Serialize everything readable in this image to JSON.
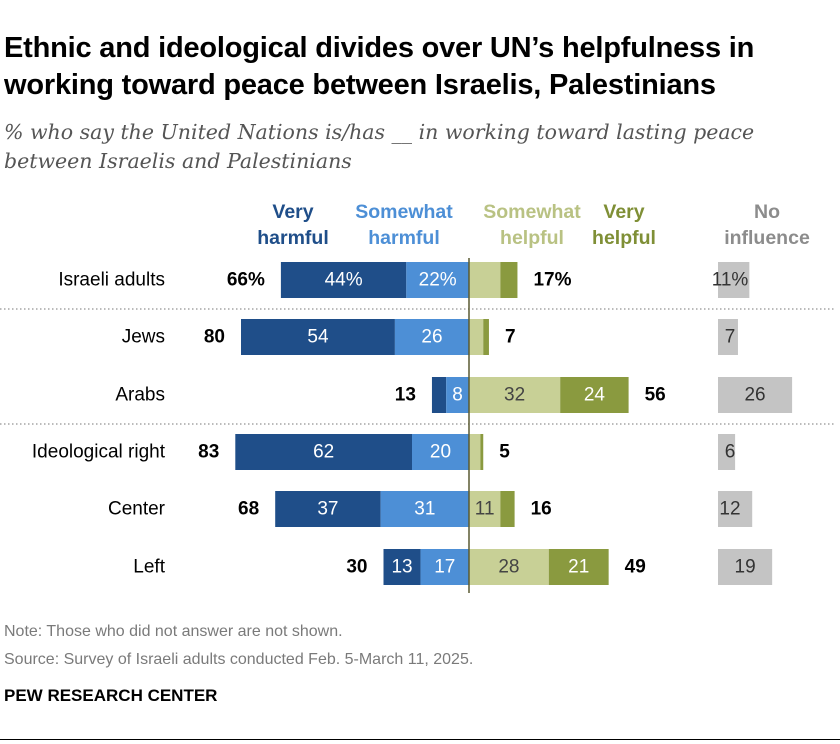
{
  "title": "Ethnic and ideological divides over UN’s helpfulness in working toward peace between Israelis, Palestinians",
  "subtitle": "% who say the United Nations is/has __ in working toward lasting peace between Israelis and Palestinians",
  "note": "Note: Those who did not answer are not shown.",
  "source": "Source: Survey of Israeli adults conducted Feb. 5-March 11, 2025.",
  "brand": "PEW RESEARCH CENTER",
  "colors": {
    "very_harmful": "#1f4e89",
    "somewhat_harmful": "#4d8fd6",
    "somewhat_helpful": "#c8d096",
    "very_helpful": "#8a9a3f",
    "no_influence": "#c4c4c4"
  },
  "chart_data": {
    "type": "bar",
    "stacked": "diverging",
    "headers": {
      "very_harmful": [
        "Very",
        "harmful"
      ],
      "somewhat_harmful": [
        "Somewhat",
        "harmful"
      ],
      "somewhat_helpful": [
        "Somewhat",
        "helpful"
      ],
      "very_helpful": [
        "Very",
        "helpful"
      ],
      "no_influence": [
        "No",
        "influence"
      ]
    },
    "rows": [
      {
        "label": "Israeli adults",
        "very_harmful": 44,
        "somewhat_harmful": 22,
        "somewhat_helpful": 11,
        "very_helpful": 6,
        "no_influence": 11,
        "harmful_total": 66,
        "helpful_total": 17,
        "labels": {
          "very_harmful": "44%",
          "somewhat_harmful": "22%",
          "somewhat_helpful": "",
          "very_helpful": "",
          "no_influence": "11%",
          "harmful_total": "66%",
          "helpful_total": "17%"
        }
      },
      {
        "label": "Jews",
        "very_harmful": 54,
        "somewhat_harmful": 26,
        "somewhat_helpful": 5,
        "very_helpful": 2,
        "no_influence": 7,
        "harmful_total": 80,
        "helpful_total": 7,
        "labels": {
          "very_harmful": "54",
          "somewhat_harmful": "26",
          "somewhat_helpful": "",
          "very_helpful": "",
          "no_influence": "7",
          "harmful_total": "80",
          "helpful_total": "7"
        }
      },
      {
        "label": "Arabs",
        "very_harmful": 5,
        "somewhat_harmful": 8,
        "somewhat_helpful": 32,
        "very_helpful": 24,
        "no_influence": 26,
        "harmful_total": 13,
        "helpful_total": 56,
        "labels": {
          "very_harmful": "",
          "somewhat_harmful": "8",
          "somewhat_helpful": "32",
          "very_helpful": "24",
          "no_influence": "26",
          "harmful_total": "13",
          "helpful_total": "56"
        }
      },
      {
        "label": "Ideological right",
        "very_harmful": 62,
        "somewhat_harmful": 20,
        "somewhat_helpful": 4,
        "very_helpful": 1,
        "no_influence": 6,
        "harmful_total": 83,
        "helpful_total": 5,
        "labels": {
          "very_harmful": "62",
          "somewhat_harmful": "20",
          "somewhat_helpful": "",
          "very_helpful": "",
          "no_influence": "6",
          "harmful_total": "83",
          "helpful_total": "5"
        }
      },
      {
        "label": "Center",
        "very_harmful": 37,
        "somewhat_harmful": 31,
        "somewhat_helpful": 11,
        "very_helpful": 5,
        "no_influence": 12,
        "harmful_total": 68,
        "helpful_total": 16,
        "labels": {
          "very_harmful": "37",
          "somewhat_harmful": "31",
          "somewhat_helpful": "11",
          "very_helpful": "",
          "no_influence": "12",
          "harmful_total": "68",
          "helpful_total": "16"
        }
      },
      {
        "label": "Left",
        "very_harmful": 13,
        "somewhat_harmful": 17,
        "somewhat_helpful": 28,
        "very_helpful": 21,
        "no_influence": 19,
        "harmful_total": 30,
        "helpful_total": 49,
        "labels": {
          "very_harmful": "13",
          "somewhat_harmful": "17",
          "somewhat_helpful": "28",
          "very_helpful": "21",
          "no_influence": "19",
          "harmful_total": "30",
          "helpful_total": "49"
        }
      }
    ]
  }
}
